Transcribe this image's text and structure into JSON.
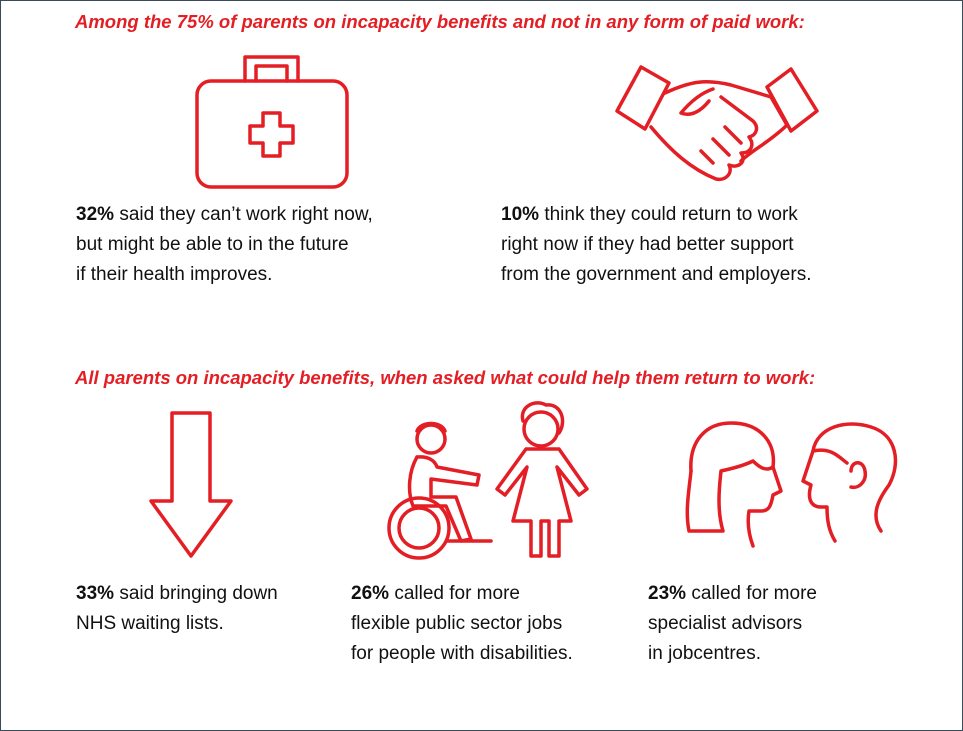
{
  "sections": [
    {
      "heading": "Among the 75% of parents on incapacity benefits and not in any form of paid work:",
      "items": [
        {
          "stat": "32%",
          "lines": [
            "said they can’t work right now,",
            "but might be able to in the future",
            "if their health improves."
          ]
        },
        {
          "stat": "10%",
          "lines": [
            "think they could return to work",
            "right now if they had better support",
            "from the government and employers."
          ]
        }
      ]
    },
    {
      "heading": "All parents on incapacity benefits, when asked what could help them return to work:",
      "items": [
        {
          "stat": "33%",
          "lines": [
            "said bringing down",
            "NHS waiting lists."
          ]
        },
        {
          "stat": "26%",
          "lines": [
            "called for more",
            "flexible public sector jobs",
            "for people with disabilities."
          ]
        },
        {
          "stat": "23%",
          "lines": [
            "called for more",
            "specialist advisors",
            "in jobcentres."
          ]
        }
      ]
    }
  ]
}
